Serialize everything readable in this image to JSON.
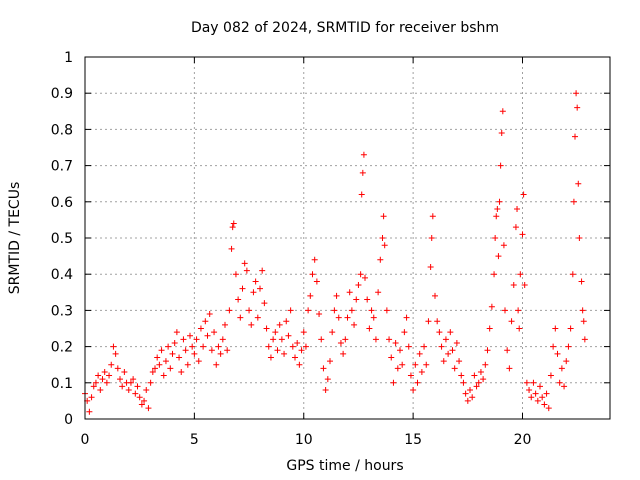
{
  "chart_data": {
    "type": "scatter",
    "title": "Day 082 of 2024, SRMTID for receiver bshm",
    "xlabel": "GPS time / hours",
    "ylabel": "SRMTID / TECUs",
    "xlim": [
      0,
      24
    ],
    "ylim": [
      0,
      1
    ],
    "x_ticks": [
      0,
      5,
      10,
      15,
      20
    ],
    "x_tick_labels": [
      "0",
      "5",
      "10",
      "15",
      "20"
    ],
    "y_ticks": [
      0,
      0.1,
      0.2,
      0.3,
      0.4,
      0.5,
      0.6,
      0.7,
      0.8,
      0.9,
      1
    ],
    "y_tick_labels": [
      "0",
      "0.1",
      "0.2",
      "0.3",
      "0.4",
      "0.5",
      "0.6",
      "0.7",
      "0.8",
      "0.9",
      "1"
    ],
    "grid": true,
    "marker": "+",
    "color": "#ff0000",
    "series": [
      {
        "name": "SRMTID",
        "points": [
          [
            0.0,
            0.07
          ],
          [
            0.1,
            0.05
          ],
          [
            0.2,
            0.02
          ],
          [
            0.3,
            0.06
          ],
          [
            0.4,
            0.09
          ],
          [
            0.5,
            0.1
          ],
          [
            0.6,
            0.12
          ],
          [
            0.7,
            0.08
          ],
          [
            0.8,
            0.11
          ],
          [
            0.9,
            0.13
          ],
          [
            1.0,
            0.1
          ],
          [
            1.1,
            0.12
          ],
          [
            1.2,
            0.15
          ],
          [
            1.3,
            0.2
          ],
          [
            1.4,
            0.18
          ],
          [
            1.5,
            0.14
          ],
          [
            1.6,
            0.11
          ],
          [
            1.7,
            0.09
          ],
          [
            1.8,
            0.13
          ],
          [
            1.9,
            0.1
          ],
          [
            2.0,
            0.08
          ],
          [
            2.1,
            0.1
          ],
          [
            2.2,
            0.11
          ],
          [
            2.3,
            0.07
          ],
          [
            2.4,
            0.09
          ],
          [
            2.5,
            0.06
          ],
          [
            2.6,
            0.04
          ],
          [
            2.7,
            0.05
          ],
          [
            2.8,
            0.08
          ],
          [
            2.9,
            0.03
          ],
          [
            3.0,
            0.1
          ],
          [
            3.1,
            0.13
          ],
          [
            3.2,
            0.14
          ],
          [
            3.3,
            0.17
          ],
          [
            3.4,
            0.15
          ],
          [
            3.5,
            0.19
          ],
          [
            3.6,
            0.12
          ],
          [
            3.7,
            0.16
          ],
          [
            3.8,
            0.2
          ],
          [
            3.9,
            0.14
          ],
          [
            4.0,
            0.18
          ],
          [
            4.1,
            0.21
          ],
          [
            4.2,
            0.24
          ],
          [
            4.3,
            0.17
          ],
          [
            4.4,
            0.13
          ],
          [
            4.5,
            0.22
          ],
          [
            4.6,
            0.19
          ],
          [
            4.7,
            0.15
          ],
          [
            4.8,
            0.23
          ],
          [
            4.9,
            0.2
          ],
          [
            5.0,
            0.18
          ],
          [
            5.1,
            0.22
          ],
          [
            5.2,
            0.16
          ],
          [
            5.3,
            0.25
          ],
          [
            5.4,
            0.2
          ],
          [
            5.5,
            0.27
          ],
          [
            5.6,
            0.23
          ],
          [
            5.7,
            0.29
          ],
          [
            5.8,
            0.19
          ],
          [
            5.9,
            0.24
          ],
          [
            6.0,
            0.15
          ],
          [
            6.1,
            0.2
          ],
          [
            6.2,
            0.18
          ],
          [
            6.3,
            0.22
          ],
          [
            6.4,
            0.26
          ],
          [
            6.5,
            0.19
          ],
          [
            6.6,
            0.3
          ],
          [
            6.7,
            0.47
          ],
          [
            6.75,
            0.53
          ],
          [
            6.8,
            0.54
          ],
          [
            6.9,
            0.4
          ],
          [
            7.0,
            0.33
          ],
          [
            7.1,
            0.28
          ],
          [
            7.2,
            0.36
          ],
          [
            7.3,
            0.43
          ],
          [
            7.4,
            0.41
          ],
          [
            7.5,
            0.3
          ],
          [
            7.6,
            0.26
          ],
          [
            7.7,
            0.35
          ],
          [
            7.8,
            0.38
          ],
          [
            7.9,
            0.28
          ],
          [
            8.0,
            0.36
          ],
          [
            8.1,
            0.41
          ],
          [
            8.2,
            0.32
          ],
          [
            8.3,
            0.25
          ],
          [
            8.4,
            0.2
          ],
          [
            8.5,
            0.17
          ],
          [
            8.6,
            0.22
          ],
          [
            8.7,
            0.24
          ],
          [
            8.8,
            0.19
          ],
          [
            8.9,
            0.26
          ],
          [
            9.0,
            0.22
          ],
          [
            9.1,
            0.18
          ],
          [
            9.2,
            0.27
          ],
          [
            9.3,
            0.23
          ],
          [
            9.4,
            0.3
          ],
          [
            9.5,
            0.2
          ],
          [
            9.6,
            0.17
          ],
          [
            9.7,
            0.21
          ],
          [
            9.8,
            0.15
          ],
          [
            9.9,
            0.19
          ],
          [
            10.0,
            0.24
          ],
          [
            10.1,
            0.2
          ],
          [
            10.2,
            0.3
          ],
          [
            10.3,
            0.34
          ],
          [
            10.4,
            0.4
          ],
          [
            10.5,
            0.44
          ],
          [
            10.6,
            0.38
          ],
          [
            10.7,
            0.29
          ],
          [
            10.8,
            0.22
          ],
          [
            10.9,
            0.14
          ],
          [
            11.0,
            0.08
          ],
          [
            11.1,
            0.11
          ],
          [
            11.2,
            0.16
          ],
          [
            11.3,
            0.24
          ],
          [
            11.4,
            0.3
          ],
          [
            11.5,
            0.34
          ],
          [
            11.6,
            0.28
          ],
          [
            11.7,
            0.21
          ],
          [
            11.8,
            0.18
          ],
          [
            11.9,
            0.22
          ],
          [
            12.0,
            0.28
          ],
          [
            12.1,
            0.35
          ],
          [
            12.2,
            0.3
          ],
          [
            12.3,
            0.26
          ],
          [
            12.4,
            0.33
          ],
          [
            12.5,
            0.37
          ],
          [
            12.6,
            0.4
          ],
          [
            12.65,
            0.62
          ],
          [
            12.7,
            0.68
          ],
          [
            12.75,
            0.73
          ],
          [
            12.8,
            0.39
          ],
          [
            12.9,
            0.33
          ],
          [
            13.0,
            0.25
          ],
          [
            13.1,
            0.3
          ],
          [
            13.2,
            0.28
          ],
          [
            13.3,
            0.22
          ],
          [
            13.4,
            0.35
          ],
          [
            13.5,
            0.44
          ],
          [
            13.6,
            0.5
          ],
          [
            13.65,
            0.56
          ],
          [
            13.7,
            0.48
          ],
          [
            13.8,
            0.3
          ],
          [
            13.9,
            0.22
          ],
          [
            14.0,
            0.17
          ],
          [
            14.1,
            0.1
          ],
          [
            14.2,
            0.21
          ],
          [
            14.3,
            0.14
          ],
          [
            14.4,
            0.19
          ],
          [
            14.5,
            0.15
          ],
          [
            14.6,
            0.24
          ],
          [
            14.7,
            0.28
          ],
          [
            14.8,
            0.2
          ],
          [
            14.9,
            0.12
          ],
          [
            15.0,
            0.08
          ],
          [
            15.1,
            0.15
          ],
          [
            15.2,
            0.1
          ],
          [
            15.3,
            0.18
          ],
          [
            15.4,
            0.13
          ],
          [
            15.5,
            0.2
          ],
          [
            15.6,
            0.15
          ],
          [
            15.7,
            0.27
          ],
          [
            15.8,
            0.42
          ],
          [
            15.85,
            0.5
          ],
          [
            15.9,
            0.56
          ],
          [
            16.0,
            0.34
          ],
          [
            16.1,
            0.27
          ],
          [
            16.2,
            0.24
          ],
          [
            16.3,
            0.2
          ],
          [
            16.4,
            0.16
          ],
          [
            16.5,
            0.22
          ],
          [
            16.6,
            0.18
          ],
          [
            16.7,
            0.24
          ],
          [
            16.8,
            0.19
          ],
          [
            16.9,
            0.14
          ],
          [
            17.0,
            0.21
          ],
          [
            17.1,
            0.16
          ],
          [
            17.2,
            0.12
          ],
          [
            17.3,
            0.1
          ],
          [
            17.4,
            0.07
          ],
          [
            17.5,
            0.05
          ],
          [
            17.6,
            0.08
          ],
          [
            17.7,
            0.06
          ],
          [
            17.8,
            0.12
          ],
          [
            17.9,
            0.09
          ],
          [
            18.0,
            0.1
          ],
          [
            18.1,
            0.13
          ],
          [
            18.2,
            0.11
          ],
          [
            18.3,
            0.15
          ],
          [
            18.4,
            0.19
          ],
          [
            18.5,
            0.25
          ],
          [
            18.6,
            0.31
          ],
          [
            18.7,
            0.4
          ],
          [
            18.75,
            0.5
          ],
          [
            18.8,
            0.56
          ],
          [
            18.85,
            0.58
          ],
          [
            18.9,
            0.45
          ],
          [
            18.95,
            0.6
          ],
          [
            19.0,
            0.7
          ],
          [
            19.05,
            0.79
          ],
          [
            19.1,
            0.85
          ],
          [
            19.15,
            0.48
          ],
          [
            19.2,
            0.3
          ],
          [
            19.3,
            0.19
          ],
          [
            19.4,
            0.14
          ],
          [
            19.5,
            0.27
          ],
          [
            19.6,
            0.37
          ],
          [
            19.7,
            0.53
          ],
          [
            19.75,
            0.58
          ],
          [
            19.8,
            0.3
          ],
          [
            19.85,
            0.25
          ],
          [
            19.9,
            0.4
          ],
          [
            20.0,
            0.51
          ],
          [
            20.05,
            0.62
          ],
          [
            20.1,
            0.37
          ],
          [
            20.2,
            0.1
          ],
          [
            20.3,
            0.08
          ],
          [
            20.4,
            0.06
          ],
          [
            20.5,
            0.1
          ],
          [
            20.6,
            0.07
          ],
          [
            20.7,
            0.05
          ],
          [
            20.8,
            0.09
          ],
          [
            20.9,
            0.06
          ],
          [
            21.0,
            0.04
          ],
          [
            21.1,
            0.07
          ],
          [
            21.2,
            0.03
          ],
          [
            21.3,
            0.12
          ],
          [
            21.4,
            0.2
          ],
          [
            21.5,
            0.25
          ],
          [
            21.6,
            0.18
          ],
          [
            21.7,
            0.1
          ],
          [
            21.8,
            0.14
          ],
          [
            21.9,
            0.09
          ],
          [
            22.0,
            0.16
          ],
          [
            22.1,
            0.2
          ],
          [
            22.2,
            0.25
          ],
          [
            22.3,
            0.4
          ],
          [
            22.35,
            0.6
          ],
          [
            22.4,
            0.78
          ],
          [
            22.45,
            0.9
          ],
          [
            22.5,
            0.86
          ],
          [
            22.55,
            0.65
          ],
          [
            22.6,
            0.5
          ],
          [
            22.7,
            0.38
          ],
          [
            22.75,
            0.3
          ],
          [
            22.8,
            0.27
          ],
          [
            22.85,
            0.22
          ]
        ]
      }
    ]
  }
}
